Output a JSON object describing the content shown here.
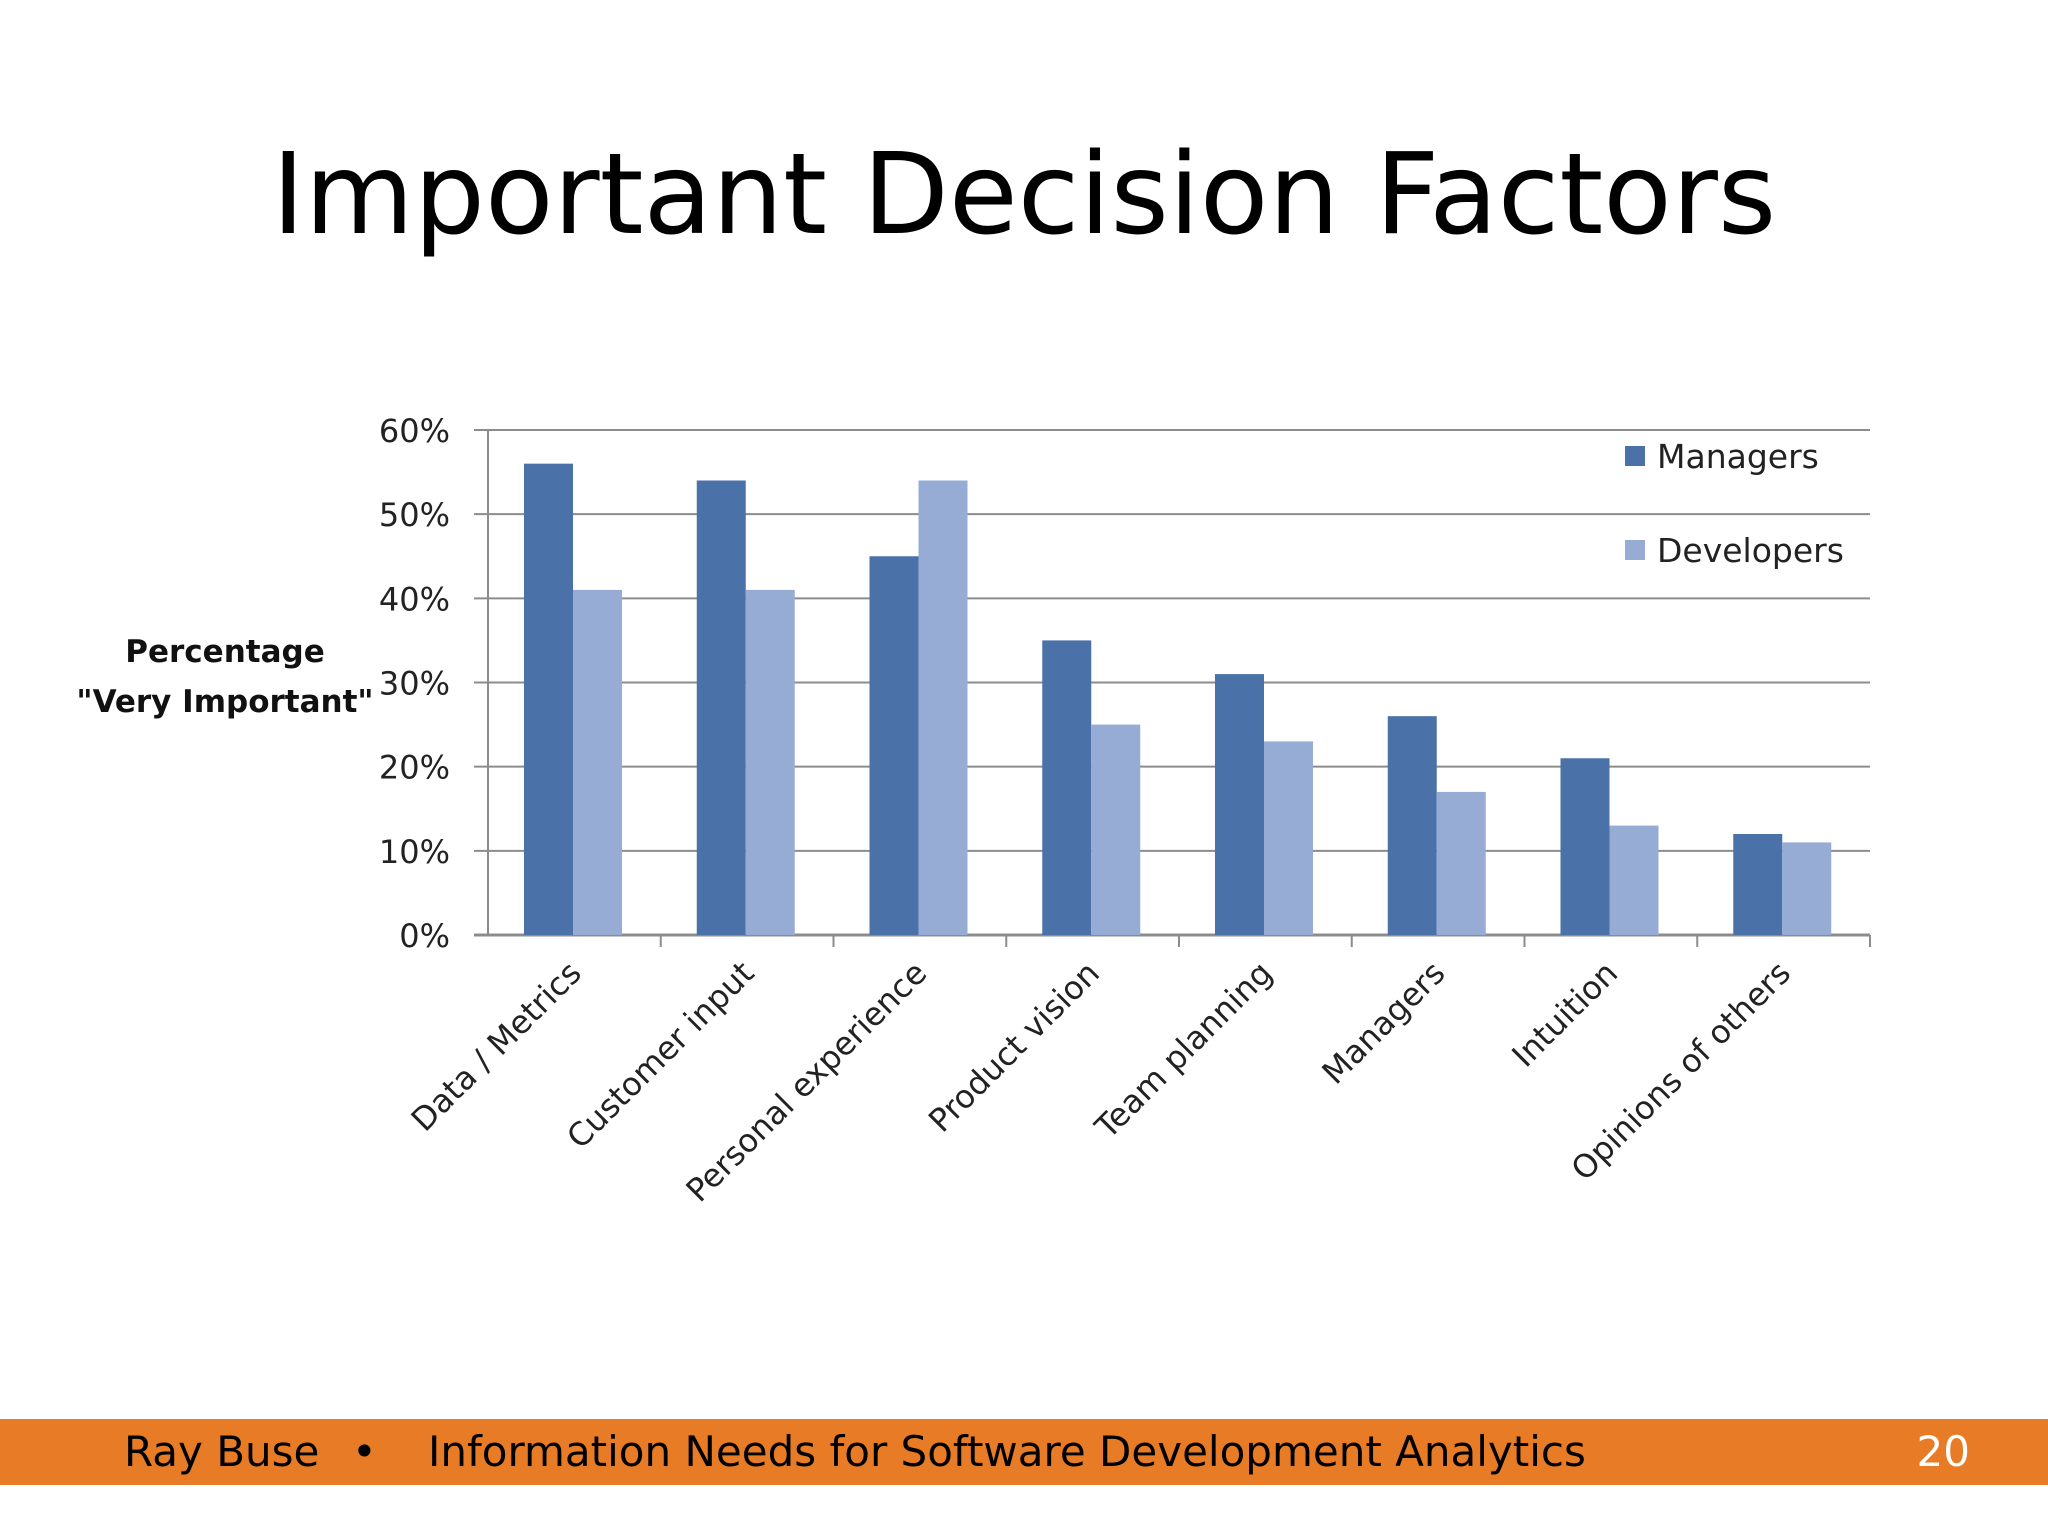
{
  "slide": {
    "title": "Important Decision Factors"
  },
  "footer": {
    "author": "Ray Buse",
    "separator": "•",
    "subtitle": "Information Needs for Software Development Analytics",
    "page_number": "20"
  },
  "colors": {
    "managers": "#4A72A8",
    "developers": "#96ACD4",
    "footer_bar": "#E87C26",
    "gridline": "#8C8C8C"
  },
  "chart_data": {
    "type": "bar",
    "title": "",
    "ylabel_lines": [
      "Percentage",
      "\"Very Important\""
    ],
    "xlabel": "",
    "categories": [
      "Data / Metrics",
      "Customer input",
      "Personal experience",
      "Product vision",
      "Team planning",
      "Managers",
      "Intuition",
      "Opinions of others"
    ],
    "series": [
      {
        "name": "Managers",
        "values": [
          56,
          54,
          45,
          35,
          31,
          26,
          21,
          12
        ]
      },
      {
        "name": "Developers",
        "values": [
          41,
          41,
          54,
          25,
          23,
          17,
          13,
          11
        ]
      }
    ],
    "ylim": [
      0,
      60
    ],
    "yticks": [
      "0%",
      "10%",
      "20%",
      "30%",
      "40%",
      "50%",
      "60%"
    ],
    "grid": true,
    "legend_position": "top-right"
  }
}
